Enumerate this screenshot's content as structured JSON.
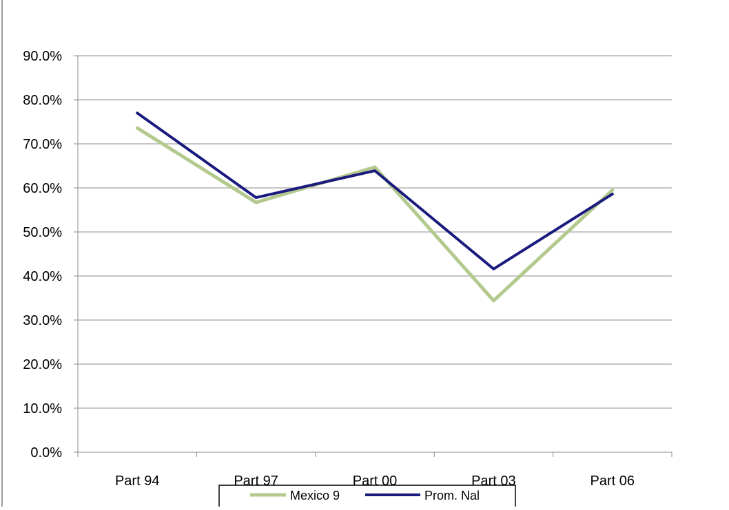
{
  "chart_data": {
    "type": "line",
    "title": "",
    "xlabel": "",
    "ylabel": "",
    "categories": [
      "Part 94",
      "Part 97",
      "Part 00",
      "Part 03",
      "Part 06"
    ],
    "y_ticks": [
      "0.0%",
      "10.0%",
      "20.0%",
      "30.0%",
      "40.0%",
      "50.0%",
      "60.0%",
      "70.0%",
      "80.0%",
      "90.0%"
    ],
    "ylim": [
      0,
      90
    ],
    "grid": true,
    "legend_position": "bottom",
    "series": [
      {
        "name": "Mexico 9",
        "color": "#b3c98e",
        "values": [
          73.6,
          56.7,
          64.7,
          34.4,
          59.5
        ]
      },
      {
        "name": "Prom. Nal",
        "color": "#1b1a7e",
        "values": [
          77.0,
          57.8,
          63.9,
          41.6,
          58.6
        ]
      }
    ]
  }
}
